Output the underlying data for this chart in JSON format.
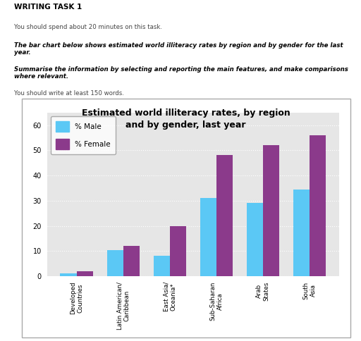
{
  "title": "Estimated world illiteracy rates, by region\nand by gender, last year",
  "categories": [
    "Developed\nCountries",
    "Latin American/\nCaribbean",
    "East Asia/\nOceania*",
    "Sub-Saharan\nAfrica",
    "Arab\nStates",
    "South\nAsia"
  ],
  "male_values": [
    1,
    10.5,
    8,
    31,
    29,
    34.5
  ],
  "female_values": [
    2,
    12,
    20,
    48,
    52,
    56
  ],
  "male_color": "#5bc8f5",
  "female_color": "#8b3a8b",
  "ylim": [
    0,
    65
  ],
  "yticks": [
    0,
    10,
    20,
    30,
    40,
    50,
    60
  ],
  "bar_width": 0.35,
  "background_color": "#e6e6e6",
  "legend_male": "% Male",
  "legend_female": "% Female",
  "header_title": "WRITING TASK 1",
  "header_line1": "You should spend about 20 minutes on this task.",
  "header_line2": "The bar chart below shows estimated world illiteracy rates by region and by gender for the last year.",
  "header_line3": "Summarise the information by selecting and reporting the main features, and make comparisons where relevant.",
  "header_line4": "You should write at least 150 words.",
  "fig_width": 5.12,
  "fig_height": 4.84,
  "dpi": 100
}
